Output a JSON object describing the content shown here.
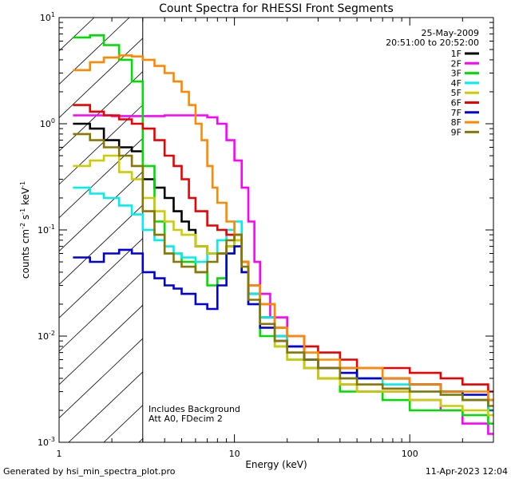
{
  "chart_data": {
    "type": "line",
    "title": "Count Spectra for RHESSI Front Segments",
    "xlabel": "Energy (keV)",
    "ylabel_parts": [
      "counts cm",
      "-2",
      " s",
      "-1",
      " keV",
      "-1"
    ],
    "xscale": "log",
    "yscale": "log",
    "xlim": [
      1,
      300
    ],
    "ylim": [
      0.001,
      10
    ],
    "x_ticks": [
      {
        "v": 1,
        "label": "1"
      },
      {
        "v": 10,
        "label": "10"
      },
      {
        "v": 100,
        "label": "100"
      }
    ],
    "y_ticks": [
      {
        "v": 0.001,
        "base": "10",
        "exp": "-3"
      },
      {
        "v": 0.01,
        "base": "10",
        "exp": "-2"
      },
      {
        "v": 0.1,
        "base": "10",
        "exp": "-1"
      },
      {
        "v": 1,
        "base": "10",
        "exp": "0"
      },
      {
        "v": 10,
        "base": "10",
        "exp": "1"
      }
    ],
    "date": "25-May-2009",
    "time_range": "20:51:00 to 20:52:00",
    "attenuator_region_max_energy": 3,
    "annotations": [
      "Includes Background",
      "Att A0, FDecim 2"
    ],
    "legend_position": "top-right",
    "series": [
      {
        "name": "1F",
        "color": "#000000",
        "points": [
          [
            1.2,
            1.0
          ],
          [
            1.5,
            0.9
          ],
          [
            1.8,
            0.7
          ],
          [
            2.2,
            0.6
          ],
          [
            2.6,
            0.55
          ],
          [
            3,
            0.3
          ],
          [
            3.5,
            0.25
          ],
          [
            4,
            0.2
          ],
          [
            4.5,
            0.15
          ],
          [
            5,
            0.12
          ],
          [
            5.5,
            0.1
          ],
          [
            6,
            0.07
          ],
          [
            7,
            0.06
          ],
          [
            8,
            0.06
          ],
          [
            9,
            0.07
          ],
          [
            10,
            0.09
          ],
          [
            11,
            0.05
          ],
          [
            12,
            0.025
          ],
          [
            14,
            0.015
          ],
          [
            17,
            0.01
          ],
          [
            20,
            0.008
          ],
          [
            25,
            0.006
          ],
          [
            30,
            0.005
          ],
          [
            40,
            0.005
          ],
          [
            50,
            0.004
          ],
          [
            70,
            0.004
          ],
          [
            100,
            0.0035
          ],
          [
            150,
            0.003
          ],
          [
            200,
            0.0025
          ],
          [
            280,
            0.002
          ]
        ]
      },
      {
        "name": "2F",
        "color": "#ff00ff",
        "points": [
          [
            1.2,
            1.2
          ],
          [
            2,
            1.18
          ],
          [
            3,
            1.18
          ],
          [
            4,
            1.2
          ],
          [
            5,
            1.2
          ],
          [
            6,
            1.2
          ],
          [
            7,
            1.15
          ],
          [
            8,
            1.0
          ],
          [
            9,
            0.7
          ],
          [
            10,
            0.45
          ],
          [
            11,
            0.25
          ],
          [
            12,
            0.12
          ],
          [
            13,
            0.05
          ],
          [
            14,
            0.025
          ],
          [
            16,
            0.015
          ],
          [
            20,
            0.008
          ],
          [
            25,
            0.005
          ],
          [
            30,
            0.004
          ],
          [
            40,
            0.0035
          ],
          [
            50,
            0.003
          ],
          [
            70,
            0.003
          ],
          [
            100,
            0.0025
          ],
          [
            150,
            0.002
          ],
          [
            200,
            0.0015
          ],
          [
            280,
            0.0012
          ]
        ]
      },
      {
        "name": "3F",
        "color": "#00dd00",
        "points": [
          [
            1.2,
            6.5
          ],
          [
            1.5,
            6.8
          ],
          [
            1.8,
            5.5
          ],
          [
            2.2,
            4.0
          ],
          [
            2.6,
            2.5
          ],
          [
            3,
            0.4
          ],
          [
            3.5,
            0.12
          ],
          [
            4,
            0.06
          ],
          [
            5,
            0.05
          ],
          [
            6,
            0.04
          ],
          [
            7,
            0.03
          ],
          [
            8,
            0.035
          ],
          [
            9,
            0.06
          ],
          [
            10,
            0.08
          ],
          [
            11,
            0.04
          ],
          [
            12,
            0.02
          ],
          [
            14,
            0.01
          ],
          [
            17,
            0.008
          ],
          [
            20,
            0.006
          ],
          [
            25,
            0.005
          ],
          [
            30,
            0.004
          ],
          [
            40,
            0.003
          ],
          [
            50,
            0.003
          ],
          [
            70,
            0.0025
          ],
          [
            100,
            0.002
          ],
          [
            150,
            0.002
          ],
          [
            200,
            0.0018
          ],
          [
            280,
            0.0015
          ]
        ]
      },
      {
        "name": "4F",
        "color": "#00eeee",
        "points": [
          [
            1.2,
            0.25
          ],
          [
            1.5,
            0.22
          ],
          [
            1.8,
            0.2
          ],
          [
            2.2,
            0.17
          ],
          [
            2.6,
            0.14
          ],
          [
            3,
            0.1
          ],
          [
            3.5,
            0.08
          ],
          [
            4,
            0.07
          ],
          [
            4.5,
            0.06
          ],
          [
            5,
            0.055
          ],
          [
            6,
            0.05
          ],
          [
            7,
            0.06
          ],
          [
            8,
            0.08
          ],
          [
            9,
            0.1
          ],
          [
            10,
            0.12
          ],
          [
            11,
            0.05
          ],
          [
            12,
            0.025
          ],
          [
            14,
            0.015
          ],
          [
            17,
            0.01
          ],
          [
            20,
            0.008
          ],
          [
            25,
            0.006
          ],
          [
            30,
            0.005
          ],
          [
            40,
            0.004
          ],
          [
            50,
            0.004
          ],
          [
            70,
            0.0035
          ],
          [
            100,
            0.003
          ],
          [
            150,
            0.0028
          ],
          [
            200,
            0.0025
          ],
          [
            280,
            0.002
          ]
        ]
      },
      {
        "name": "5F",
        "color": "#cccc00",
        "points": [
          [
            1.2,
            0.4
          ],
          [
            1.5,
            0.45
          ],
          [
            1.8,
            0.5
          ],
          [
            2.2,
            0.35
          ],
          [
            2.6,
            0.3
          ],
          [
            3,
            0.2
          ],
          [
            3.5,
            0.15
          ],
          [
            4,
            0.12
          ],
          [
            4.5,
            0.1
          ],
          [
            5,
            0.09
          ],
          [
            6,
            0.07
          ],
          [
            7,
            0.06
          ],
          [
            8,
            0.06
          ],
          [
            9,
            0.07
          ],
          [
            10,
            0.08
          ],
          [
            11,
            0.04
          ],
          [
            12,
            0.02
          ],
          [
            14,
            0.012
          ],
          [
            17,
            0.008
          ],
          [
            20,
            0.006
          ],
          [
            25,
            0.005
          ],
          [
            30,
            0.004
          ],
          [
            40,
            0.0035
          ],
          [
            50,
            0.003
          ],
          [
            70,
            0.003
          ],
          [
            100,
            0.0025
          ],
          [
            150,
            0.0022
          ],
          [
            200,
            0.002
          ],
          [
            280,
            0.0018
          ]
        ]
      },
      {
        "name": "6F",
        "color": "#ee0000",
        "points": [
          [
            1.2,
            1.5
          ],
          [
            1.5,
            1.3
          ],
          [
            1.8,
            1.2
          ],
          [
            2.2,
            1.1
          ],
          [
            2.6,
            1.0
          ],
          [
            3,
            0.9
          ],
          [
            3.5,
            0.7
          ],
          [
            4,
            0.5
          ],
          [
            4.5,
            0.4
          ],
          [
            5,
            0.3
          ],
          [
            5.5,
            0.2
          ],
          [
            6,
            0.15
          ],
          [
            7,
            0.11
          ],
          [
            8,
            0.1
          ],
          [
            9,
            0.09
          ],
          [
            10,
            0.09
          ],
          [
            11,
            0.05
          ],
          [
            12,
            0.03
          ],
          [
            14,
            0.02
          ],
          [
            17,
            0.012
          ],
          [
            20,
            0.01
          ],
          [
            25,
            0.008
          ],
          [
            30,
            0.007
          ],
          [
            40,
            0.006
          ],
          [
            50,
            0.005
          ],
          [
            70,
            0.005
          ],
          [
            100,
            0.0045
          ],
          [
            150,
            0.004
          ],
          [
            200,
            0.0035
          ],
          [
            280,
            0.003
          ]
        ]
      },
      {
        "name": "7F",
        "color": "#0000dd",
        "points": [
          [
            1.2,
            0.055
          ],
          [
            1.5,
            0.05
          ],
          [
            1.8,
            0.06
          ],
          [
            2.2,
            0.065
          ],
          [
            2.6,
            0.06
          ],
          [
            3,
            0.04
          ],
          [
            3.5,
            0.035
          ],
          [
            4,
            0.03
          ],
          [
            4.5,
            0.028
          ],
          [
            5,
            0.025
          ],
          [
            6,
            0.02
          ],
          [
            7,
            0.018
          ],
          [
            8,
            0.03
          ],
          [
            9,
            0.06
          ],
          [
            10,
            0.07
          ],
          [
            11,
            0.04
          ],
          [
            12,
            0.02
          ],
          [
            14,
            0.012
          ],
          [
            17,
            0.009
          ],
          [
            20,
            0.008
          ],
          [
            25,
            0.006
          ],
          [
            30,
            0.005
          ],
          [
            40,
            0.0045
          ],
          [
            50,
            0.004
          ],
          [
            70,
            0.004
          ],
          [
            100,
            0.0035
          ],
          [
            150,
            0.003
          ],
          [
            200,
            0.0028
          ],
          [
            280,
            0.0025
          ]
        ]
      },
      {
        "name": "8F",
        "color": "#ff8800",
        "points": [
          [
            1.2,
            3.2
          ],
          [
            1.5,
            3.8
          ],
          [
            1.8,
            4.2
          ],
          [
            2.2,
            4.4
          ],
          [
            2.6,
            4.3
          ],
          [
            3,
            4.0
          ],
          [
            3.5,
            3.5
          ],
          [
            4,
            3.0
          ],
          [
            4.5,
            2.5
          ],
          [
            5,
            2.0
          ],
          [
            5.5,
            1.5
          ],
          [
            6,
            1.0
          ],
          [
            6.5,
            0.7
          ],
          [
            7,
            0.4
          ],
          [
            7.5,
            0.25
          ],
          [
            8,
            0.18
          ],
          [
            9,
            0.12
          ],
          [
            10,
            0.09
          ],
          [
            11,
            0.05
          ],
          [
            12,
            0.03
          ],
          [
            14,
            0.02
          ],
          [
            17,
            0.012
          ],
          [
            20,
            0.01
          ],
          [
            25,
            0.007
          ],
          [
            30,
            0.006
          ],
          [
            40,
            0.005
          ],
          [
            50,
            0.005
          ],
          [
            70,
            0.004
          ],
          [
            100,
            0.0035
          ],
          [
            150,
            0.003
          ],
          [
            200,
            0.003
          ],
          [
            280,
            0.0025
          ]
        ]
      },
      {
        "name": "9F",
        "color": "#887700",
        "points": [
          [
            1.2,
            0.8
          ],
          [
            1.5,
            0.7
          ],
          [
            1.8,
            0.6
          ],
          [
            2.2,
            0.5
          ],
          [
            2.6,
            0.4
          ],
          [
            3,
            0.15
          ],
          [
            3.5,
            0.09
          ],
          [
            4,
            0.06
          ],
          [
            4.5,
            0.05
          ],
          [
            5,
            0.045
          ],
          [
            6,
            0.04
          ],
          [
            7,
            0.05
          ],
          [
            8,
            0.06
          ],
          [
            9,
            0.08
          ],
          [
            10,
            0.09
          ],
          [
            11,
            0.045
          ],
          [
            12,
            0.022
          ],
          [
            14,
            0.013
          ],
          [
            17,
            0.009
          ],
          [
            20,
            0.007
          ],
          [
            25,
            0.006
          ],
          [
            30,
            0.005
          ],
          [
            40,
            0.004
          ],
          [
            50,
            0.0035
          ],
          [
            70,
            0.0032
          ],
          [
            100,
            0.003
          ],
          [
            150,
            0.0028
          ],
          [
            200,
            0.0025
          ],
          [
            280,
            0.0022
          ]
        ]
      }
    ]
  },
  "footer": {
    "generated_by": "Generated by hsi_min_spectra_plot.pro",
    "timestamp": "11-Apr-2023 12:04"
  }
}
